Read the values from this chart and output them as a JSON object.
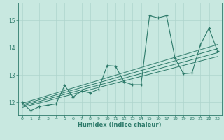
{
  "xlabel": "Humidex (Indice chaleur)",
  "xlim": [
    -0.5,
    23.5
  ],
  "ylim": [
    11.55,
    15.65
  ],
  "yticks": [
    12,
    13,
    14,
    15
  ],
  "xticks": [
    0,
    1,
    2,
    3,
    4,
    5,
    6,
    7,
    8,
    9,
    10,
    11,
    12,
    13,
    14,
    15,
    16,
    17,
    18,
    19,
    20,
    21,
    22,
    23
  ],
  "bg_color": "#c8e8e0",
  "line_color": "#2d7a6a",
  "grid_color": "#aed4cc",
  "data_x": [
    0,
    1,
    2,
    3,
    4,
    5,
    6,
    7,
    8,
    9,
    10,
    11,
    12,
    13,
    14,
    15,
    16,
    17,
    18,
    19,
    20,
    21,
    22,
    23
  ],
  "data_y": [
    12.0,
    11.7,
    11.85,
    11.9,
    11.95,
    12.62,
    12.2,
    12.42,
    12.35,
    12.48,
    13.35,
    13.33,
    12.75,
    12.65,
    12.65,
    15.18,
    15.1,
    15.18,
    13.62,
    13.05,
    13.08,
    14.12,
    14.72,
    13.88
  ],
  "reg_lines": [
    {
      "x": [
        0,
        23
      ],
      "y": [
        11.82,
        13.68
      ]
    },
    {
      "x": [
        0,
        23
      ],
      "y": [
        11.87,
        13.82
      ]
    },
    {
      "x": [
        0,
        23
      ],
      "y": [
        11.92,
        13.97
      ]
    },
    {
      "x": [
        0,
        23
      ],
      "y": [
        11.97,
        14.12
      ]
    }
  ]
}
